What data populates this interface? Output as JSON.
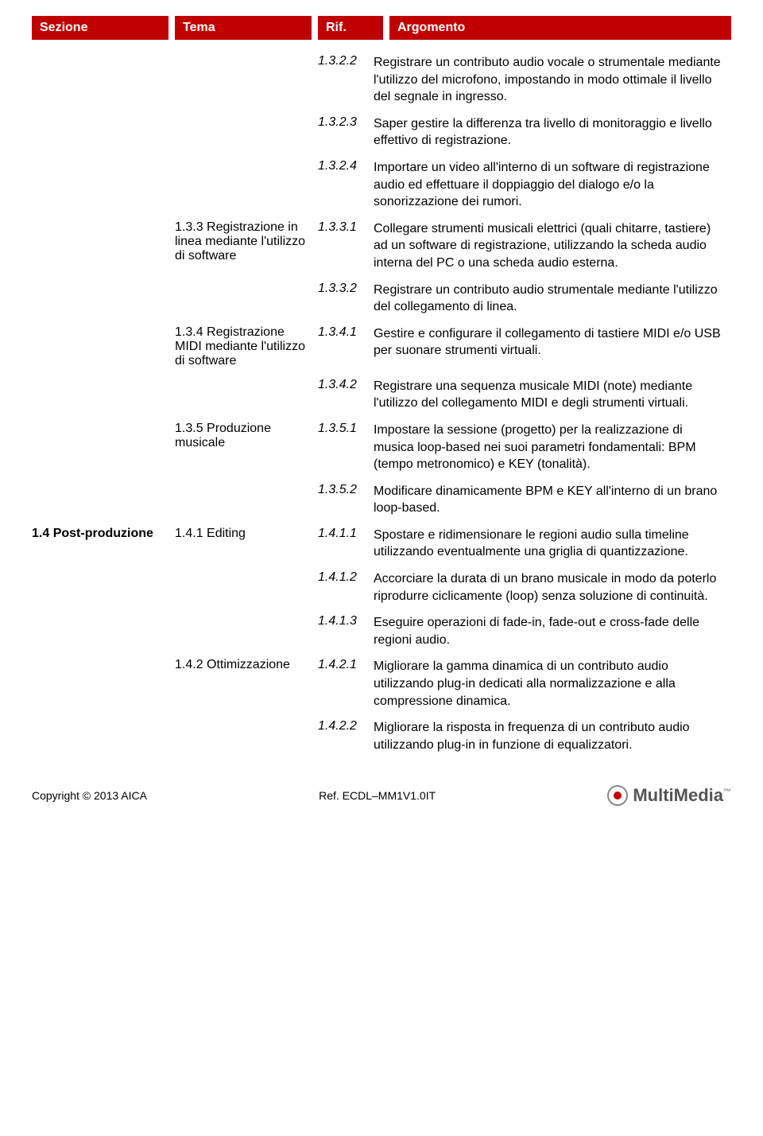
{
  "colors": {
    "header_bg": "#c00000",
    "header_fg": "#ffffff",
    "body_bg": "#ffffff",
    "text": "#000000"
  },
  "headers": {
    "sezione": "Sezione",
    "tema": "Tema",
    "rif": "Rif.",
    "argomento": "Argomento"
  },
  "rows": [
    {
      "sezione": "",
      "tema": "",
      "rif": "1.3.2.2",
      "arg": "Registrare un contributo audio vocale o strumentale mediante l'utilizzo del microfono, impostando in modo ottimale il livello del segnale in ingresso."
    },
    {
      "sezione": "",
      "tema": "",
      "rif": "1.3.2.3",
      "arg": "Saper gestire la differenza tra livello di monitoraggio e livello effettivo di registrazione."
    },
    {
      "sezione": "",
      "tema": "",
      "rif": "1.3.2.4",
      "arg": "Importare un video all'interno di un software di registrazione audio ed effettuare il doppiaggio del dialogo e/o la sonorizzazione dei rumori."
    },
    {
      "sezione": "",
      "tema": "1.3.3 Registrazione in linea mediante l'utilizzo di software",
      "rif": "1.3.3.1",
      "arg": "Collegare strumenti musicali elettrici (quali chitarre, tastiere) ad un software di registrazione, utilizzando la scheda audio interna del PC o una scheda audio esterna."
    },
    {
      "sezione": "",
      "tema": "",
      "rif": "1.3.3.2",
      "arg": "Registrare un contributo audio strumentale mediante l'utilizzo del collegamento di linea."
    },
    {
      "sezione": "",
      "tema": "1.3.4 Registrazione MIDI mediante l'utilizzo di software",
      "rif": "1.3.4.1",
      "arg": "Gestire e configurare il collegamento di tastiere MIDI e/o USB per suonare strumenti virtuali."
    },
    {
      "sezione": "",
      "tema": "",
      "rif": "1.3.4.2",
      "arg": "Registrare una sequenza musicale MIDI (note) mediante l'utilizzo del collegamento MIDI e degli strumenti virtuali."
    },
    {
      "sezione": "",
      "tema": "1.3.5 Produzione musicale",
      "rif": "1.3.5.1",
      "arg": "Impostare la sessione (progetto) per la realizzazione di musica loop-based nei suoi parametri fondamentali: BPM (tempo metronomico) e KEY (tonalità)."
    },
    {
      "sezione": "",
      "tema": "",
      "rif": "1.3.5.2",
      "arg": "Modificare dinamicamente BPM e KEY all'interno di un brano loop-based."
    },
    {
      "sezione": "1.4 Post-produzione",
      "tema": "1.4.1  Editing",
      "rif": "1.4.1.1",
      "arg": "Spostare e ridimensionare le regioni audio sulla timeline utilizzando eventualmente una griglia di quantizzazione."
    },
    {
      "sezione": "",
      "tema": "",
      "rif": "1.4.1.2",
      "arg": "Accorciare la durata di un brano musicale in modo da poterlo riprodurre ciclicamente (loop) senza soluzione di continuità."
    },
    {
      "sezione": "",
      "tema": "",
      "rif": "1.4.1.3",
      "arg": "Eseguire operazioni di fade-in, fade-out e cross-fade delle regioni audio."
    },
    {
      "sezione": "",
      "tema": "1.4.2 Ottimizzazione",
      "rif": "1.4.2.1",
      "arg": "Migliorare la gamma dinamica di un contributo audio utilizzando plug-in dedicati alla normalizzazione e alla compressione dinamica."
    },
    {
      "sezione": "",
      "tema": "",
      "rif": "1.4.2.2",
      "arg": "Migliorare la risposta in frequenza di un contributo audio utilizzando plug-in in funzione di equalizzatori."
    }
  ],
  "footer": {
    "copyright": "Copyright © 2013 AICA",
    "ref": "Ref. ECDL–MM1V1.0IT",
    "logo_text": "MultiMedia",
    "logo_tm": "™"
  }
}
